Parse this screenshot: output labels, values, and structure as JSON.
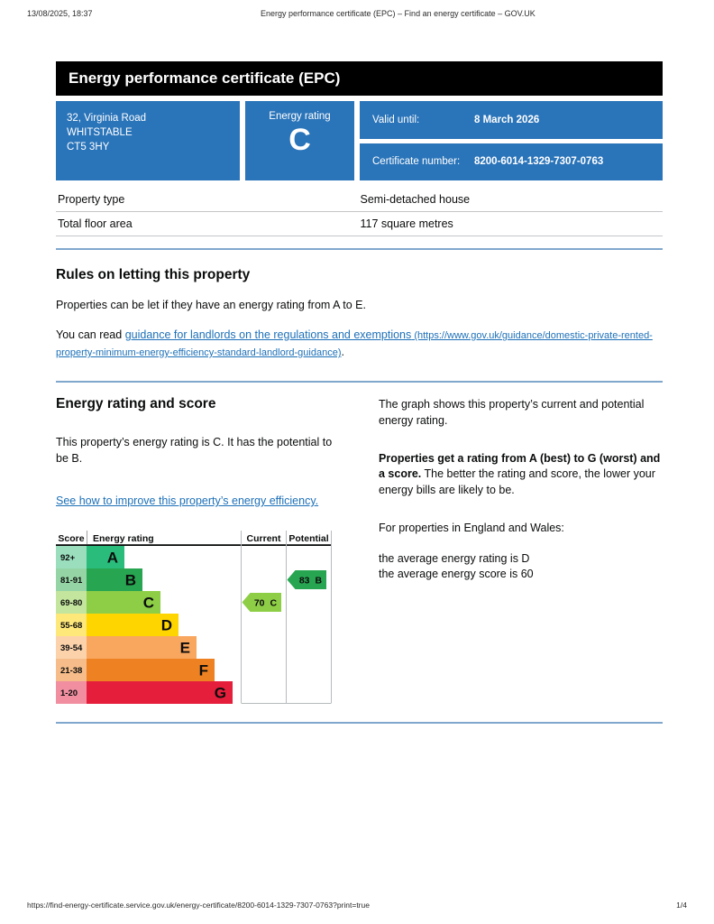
{
  "print_header": {
    "datetime": "13/08/2025, 18:37",
    "title": "Energy performance certificate (EPC) – Find an energy certificate – GOV.UK"
  },
  "banner": {
    "title": "Energy performance certificate (EPC)"
  },
  "summary": {
    "address_lines": [
      "32, Virginia Road",
      "WHITSTABLE",
      "CT5 3HY"
    ],
    "rating_label": "Energy rating",
    "rating_value": "C",
    "valid_until_label": "Valid until:",
    "valid_until_value": "8 March 2026",
    "certificate_number_label": "Certificate number:",
    "certificate_number_value": "8200-6014-1329-7307-0763"
  },
  "property": {
    "rows": [
      {
        "label": "Property type",
        "value": "Semi-detached house"
      },
      {
        "label": "Total floor area",
        "value": "117 square metres"
      }
    ]
  },
  "rules_section": {
    "heading": "Rules on letting this property",
    "para1": "Properties can be let if they have an energy rating from A to E.",
    "para2_prefix": "You can read ",
    "link_text": "guidance for landlords on the regulations and exemptions",
    "link_url_text": " (https://www.gov.uk/guidance/domestic-private-rented-property-minimum-energy-efficiency-standard-landlord-guidance)",
    "para2_suffix": "."
  },
  "rating_section": {
    "heading": "Energy rating and score",
    "para1": "This property’s energy rating is C. It has the potential to be B.",
    "improve_link_text": "See how to improve this property’s energy efficiency.",
    "right_para1": "The graph shows this property’s current and potential energy rating.",
    "right_para2_bold": "Properties get a rating from A (best) to G (worst) and a score.",
    "right_para2_rest": " The better the rating and score, the lower your energy bills are likely to be.",
    "right_para3": "For properties in England and Wales:",
    "right_para4_line1": "the average energy rating is D",
    "right_para4_line2": "the average energy score is 60"
  },
  "chart_data": {
    "type": "epc-band-chart",
    "column_headers": {
      "score": "Score",
      "rating": "Energy rating",
      "current": "Current",
      "potential": "Potential"
    },
    "bands": [
      {
        "score_range": "92+",
        "letter": "A",
        "band_color": "#2abc7b",
        "score_cell_color": "#9adebe"
      },
      {
        "score_range": "81-91",
        "letter": "B",
        "band_color": "#27a551",
        "score_cell_color": "#95d5a5"
      },
      {
        "score_range": "69-80",
        "letter": "C",
        "band_color": "#8dce46",
        "score_cell_color": "#c3e59e"
      },
      {
        "score_range": "55-68",
        "letter": "D",
        "band_color": "#ffd500",
        "score_cell_color": "#ffe87a"
      },
      {
        "score_range": "39-54",
        "letter": "E",
        "band_color": "#f9a65e",
        "score_cell_color": "#fcd2ab"
      },
      {
        "score_range": "21-38",
        "letter": "F",
        "band_color": "#ee8122",
        "score_cell_color": "#f6bd8a"
      },
      {
        "score_range": "1-20",
        "letter": "G",
        "band_color": "#e51e3c",
        "score_cell_color": "#f18fa1"
      }
    ],
    "current": {
      "score": 70,
      "rating": "C",
      "color": "#8dce46"
    },
    "potential": {
      "score": 83,
      "rating": "B",
      "color": "#27a551"
    }
  },
  "footer": {
    "url": "https://find-energy-certificate.service.gov.uk/energy-certificate/8200-6014-1329-7307-0763?print=true",
    "page": "1/4"
  }
}
